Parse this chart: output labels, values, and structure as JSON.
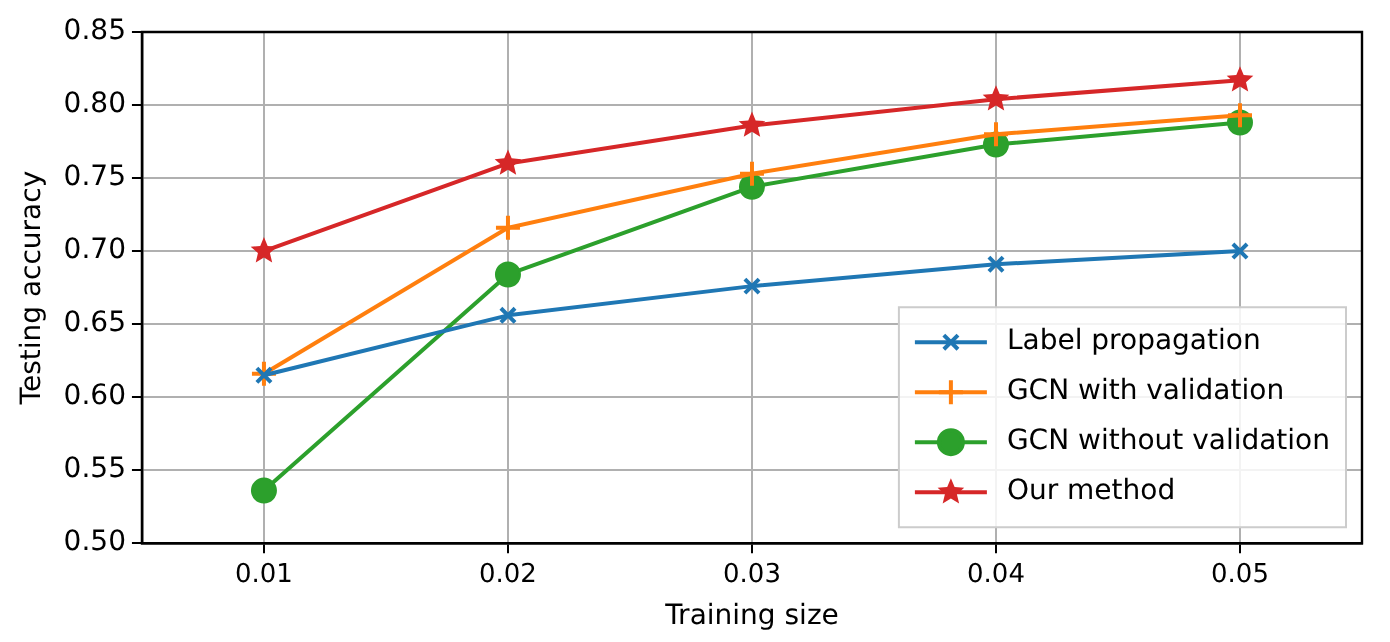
{
  "chart_data": {
    "type": "line",
    "xlabel": "Training size",
    "ylabel": "Testing accuracy",
    "x": [
      0.01,
      0.02,
      0.03,
      0.04,
      0.05
    ],
    "xlim": [
      0.005,
      0.055
    ],
    "xticks": [
      {
        "value": 0.01,
        "label": "0.01"
      },
      {
        "value": 0.02,
        "label": "0.02"
      },
      {
        "value": 0.03,
        "label": "0.03"
      },
      {
        "value": 0.04,
        "label": "0.04"
      },
      {
        "value": 0.05,
        "label": "0.05"
      }
    ],
    "ylim": [
      0.5,
      0.85
    ],
    "yticks": [
      {
        "value": 0.5,
        "label": "0.50"
      },
      {
        "value": 0.55,
        "label": "0.55"
      },
      {
        "value": 0.6,
        "label": "0.60"
      },
      {
        "value": 0.65,
        "label": "0.65"
      },
      {
        "value": 0.7,
        "label": "0.70"
      },
      {
        "value": 0.75,
        "label": "0.75"
      },
      {
        "value": 0.8,
        "label": "0.80"
      },
      {
        "value": 0.85,
        "label": "0.85"
      }
    ],
    "grid": true,
    "legend": "bottom right",
    "line_style": "solid",
    "series": [
      {
        "name": "Label propagation",
        "color": "#1f77b4",
        "marker": "cross",
        "values": [
          0.615,
          0.656,
          0.676,
          0.691,
          0.7
        ]
      },
      {
        "name": "GCN with validation",
        "color": "#ff7f0e",
        "marker": "plus",
        "values": [
          0.616,
          0.716,
          0.753,
          0.78,
          0.793
        ]
      },
      {
        "name": "GCN without validation",
        "color": "#2ca02c",
        "marker": "circle",
        "values": [
          0.536,
          0.684,
          0.744,
          0.773,
          0.788
        ]
      },
      {
        "name": "Our method",
        "color": "#d62728",
        "marker": "star",
        "values": [
          0.7,
          0.76,
          0.786,
          0.804,
          0.817
        ]
      }
    ]
  }
}
